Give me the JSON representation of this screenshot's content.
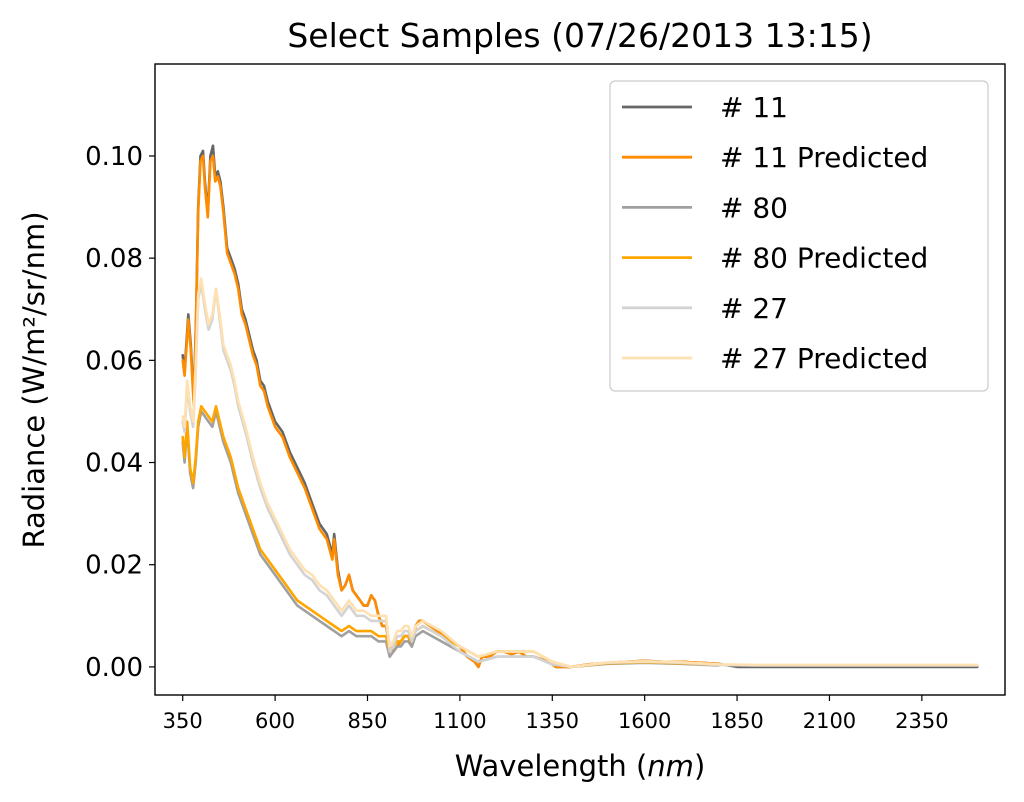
{
  "chart_data": {
    "type": "line",
    "title": "Select Samples (07/26/2013 13:15)",
    "xlabel_prefix": "Wavelength (",
    "xlabel_unit": "nm",
    "xlabel_suffix": ")",
    "ylabel": "Radiance (W/m²/sr/nm)",
    "xlim": [
      275,
      2575
    ],
    "ylim": [
      -0.0055,
      0.118
    ],
    "xticks": [
      350,
      600,
      850,
      1100,
      1350,
      1600,
      1850,
      2100,
      2350
    ],
    "yticks": [
      "0.00",
      "0.02",
      "0.04",
      "0.06",
      "0.08",
      "0.10"
    ],
    "ytick_values": [
      0.0,
      0.02,
      0.04,
      0.06,
      0.08,
      0.1
    ],
    "legend_position": "upper right",
    "series": [
      {
        "name": "# 11",
        "color": "#666666",
        "x": [
          350,
          355,
          365,
          372,
          380,
          386,
          392,
          398,
          405,
          410,
          418,
          425,
          432,
          438,
          445,
          452,
          460,
          470,
          480,
          490,
          500,
          510,
          520,
          530,
          540,
          550,
          560,
          570,
          580,
          590,
          600,
          620,
          640,
          660,
          680,
          700,
          720,
          740,
          755,
          760,
          770,
          780,
          790,
          800,
          810,
          820,
          830,
          840,
          850,
          860,
          870,
          880,
          890,
          900,
          910,
          920,
          930,
          940,
          950,
          960,
          970,
          980,
          990,
          1000,
          1020,
          1040,
          1060,
          1080,
          1100,
          1120,
          1140,
          1150,
          1160,
          1180,
          1200,
          1220,
          1240,
          1260,
          1280,
          1300,
          1320,
          1340,
          1360,
          1400,
          1450,
          1500,
          1550,
          1600,
          1650,
          1700,
          1750,
          1800,
          1850,
          1900,
          1950,
          2000,
          2050,
          2100,
          2150,
          2200,
          2250,
          2300,
          2350,
          2400,
          2450,
          2500
        ],
        "y": [
          0.061,
          0.058,
          0.069,
          0.063,
          0.052,
          0.068,
          0.09,
          0.1,
          0.101,
          0.095,
          0.089,
          0.1,
          0.102,
          0.096,
          0.097,
          0.095,
          0.09,
          0.082,
          0.08,
          0.078,
          0.075,
          0.07,
          0.068,
          0.065,
          0.062,
          0.06,
          0.056,
          0.055,
          0.052,
          0.05,
          0.048,
          0.046,
          0.042,
          0.039,
          0.036,
          0.032,
          0.028,
          0.026,
          0.022,
          0.026,
          0.019,
          0.015,
          0.016,
          0.018,
          0.015,
          0.014,
          0.013,
          0.012,
          0.012,
          0.014,
          0.013,
          0.01,
          0.008,
          0.008,
          0.004,
          0.003,
          0.004,
          0.005,
          0.006,
          0.006,
          0.004,
          0.008,
          0.009,
          0.009,
          0.008,
          0.007,
          0.006,
          0.005,
          0.004,
          0.002,
          0.001,
          0.0,
          0.002,
          0.002,
          0.003,
          0.003,
          0.0025,
          0.003,
          0.002,
          0.002,
          0.0015,
          0.001,
          0.0,
          0.0,
          0.0005,
          0.0008,
          0.001,
          0.0012,
          0.001,
          0.001,
          0.0008,
          0.0006,
          0.0,
          0.0,
          0.0,
          0.0,
          0.0,
          0.0,
          0.0,
          0.0,
          0.0,
          0.0,
          0.0,
          0.0,
          0.0,
          0.0
        ]
      },
      {
        "name": "# 11 Predicted",
        "color": "#ff8c00",
        "x": [
          350,
          355,
          365,
          372,
          380,
          386,
          392,
          398,
          405,
          410,
          418,
          425,
          432,
          438,
          445,
          452,
          460,
          470,
          480,
          490,
          500,
          510,
          520,
          530,
          540,
          550,
          560,
          570,
          580,
          590,
          600,
          620,
          640,
          660,
          680,
          700,
          720,
          740,
          755,
          760,
          770,
          780,
          790,
          800,
          810,
          820,
          830,
          840,
          850,
          860,
          870,
          880,
          890,
          900,
          910,
          920,
          930,
          940,
          950,
          960,
          970,
          980,
          990,
          1000,
          1020,
          1040,
          1060,
          1080,
          1100,
          1120,
          1140,
          1150,
          1160,
          1180,
          1200,
          1220,
          1240,
          1260,
          1280,
          1300,
          1320,
          1340,
          1360,
          1400,
          1450,
          1500,
          1550,
          1600,
          1650,
          1700,
          1750,
          1800
        ],
        "y": [
          0.06,
          0.057,
          0.068,
          0.062,
          0.051,
          0.067,
          0.089,
          0.099,
          0.1,
          0.094,
          0.088,
          0.099,
          0.1,
          0.095,
          0.096,
          0.094,
          0.089,
          0.081,
          0.079,
          0.077,
          0.074,
          0.069,
          0.067,
          0.064,
          0.061,
          0.059,
          0.055,
          0.054,
          0.051,
          0.049,
          0.047,
          0.045,
          0.041,
          0.038,
          0.035,
          0.031,
          0.027,
          0.025,
          0.021,
          0.025,
          0.018,
          0.015,
          0.016,
          0.018,
          0.015,
          0.014,
          0.013,
          0.012,
          0.012,
          0.014,
          0.013,
          0.01,
          0.008,
          0.008,
          0.004,
          0.003,
          0.004,
          0.005,
          0.006,
          0.006,
          0.004,
          0.008,
          0.009,
          0.009,
          0.008,
          0.007,
          0.006,
          0.005,
          0.004,
          0.002,
          0.001,
          0.0,
          0.002,
          0.002,
          0.003,
          0.003,
          0.0025,
          0.003,
          0.002,
          0.002,
          0.0015,
          0.001,
          0.0,
          0.0,
          0.0005,
          0.0008,
          0.001,
          0.0012,
          0.001,
          0.001,
          0.0008,
          0.0006
        ]
      },
      {
        "name": "# 80",
        "color": "#a0a0a0",
        "x": [
          350,
          355,
          362,
          370,
          378,
          385,
          392,
          400,
          410,
          420,
          430,
          440,
          450,
          460,
          470,
          480,
          490,
          500,
          520,
          540,
          560,
          580,
          600,
          620,
          640,
          660,
          680,
          700,
          720,
          740,
          760,
          780,
          800,
          820,
          840,
          860,
          880,
          900,
          910,
          920,
          930,
          940,
          950,
          960,
          970,
          980,
          1000,
          1050,
          1100,
          1150,
          1200,
          1250,
          1300,
          1350,
          1400,
          1500,
          1600,
          1700,
          1800
        ],
        "y": [
          0.044,
          0.04,
          0.047,
          0.038,
          0.035,
          0.04,
          0.047,
          0.05,
          0.049,
          0.048,
          0.047,
          0.05,
          0.047,
          0.044,
          0.042,
          0.04,
          0.037,
          0.034,
          0.03,
          0.026,
          0.022,
          0.02,
          0.018,
          0.016,
          0.014,
          0.012,
          0.011,
          0.01,
          0.009,
          0.008,
          0.007,
          0.006,
          0.007,
          0.006,
          0.006,
          0.006,
          0.005,
          0.005,
          0.002,
          0.003,
          0.004,
          0.004,
          0.005,
          0.005,
          0.004,
          0.006,
          0.007,
          0.005,
          0.003,
          0.001,
          0.002,
          0.002,
          0.002,
          0.0005,
          0.0,
          0.0006,
          0.0008,
          0.0006,
          0.0003
        ]
      },
      {
        "name": "# 80 Predicted",
        "color": "#ffa500",
        "x": [
          350,
          355,
          362,
          370,
          378,
          385,
          392,
          400,
          410,
          420,
          430,
          440,
          450,
          460,
          470,
          480,
          490,
          500,
          520,
          540,
          560,
          580,
          600,
          620,
          640,
          660,
          680,
          700,
          720,
          740,
          760,
          780,
          800,
          820,
          840,
          860,
          880,
          900,
          910,
          920,
          930,
          940,
          950,
          960,
          970,
          980,
          1000,
          1050,
          1100,
          1150,
          1200,
          1250,
          1300,
          1350,
          1400,
          1500,
          1600,
          1700,
          1800
        ],
        "y": [
          0.045,
          0.041,
          0.048,
          0.039,
          0.036,
          0.041,
          0.048,
          0.051,
          0.05,
          0.049,
          0.048,
          0.051,
          0.048,
          0.045,
          0.043,
          0.041,
          0.038,
          0.035,
          0.031,
          0.027,
          0.023,
          0.021,
          0.019,
          0.017,
          0.015,
          0.013,
          0.012,
          0.011,
          0.01,
          0.009,
          0.008,
          0.007,
          0.008,
          0.007,
          0.007,
          0.007,
          0.006,
          0.006,
          0.003,
          0.004,
          0.005,
          0.005,
          0.006,
          0.006,
          0.005,
          0.007,
          0.008,
          0.006,
          0.004,
          0.002,
          0.003,
          0.003,
          0.003,
          0.001,
          0.0,
          0.0007,
          0.0009,
          0.0007,
          0.0004
        ]
      },
      {
        "name": "# 27",
        "color": "#d3d3d3",
        "x": [
          350,
          355,
          362,
          370,
          378,
          385,
          392,
          400,
          410,
          420,
          430,
          440,
          450,
          460,
          470,
          480,
          490,
          500,
          520,
          540,
          560,
          580,
          600,
          620,
          640,
          660,
          680,
          700,
          720,
          740,
          760,
          780,
          800,
          820,
          840,
          860,
          880,
          900,
          910,
          920,
          930,
          940,
          950,
          960,
          970,
          980,
          1000,
          1050,
          1100,
          1150,
          1200,
          1250,
          1300,
          1350,
          1400,
          1500,
          1600,
          1700,
          1800,
          1900,
          2000,
          2100,
          2200,
          2300,
          2400,
          2500
        ],
        "y": [
          0.048,
          0.046,
          0.055,
          0.05,
          0.047,
          0.058,
          0.072,
          0.075,
          0.07,
          0.066,
          0.068,
          0.074,
          0.068,
          0.062,
          0.06,
          0.058,
          0.055,
          0.051,
          0.046,
          0.04,
          0.035,
          0.031,
          0.028,
          0.025,
          0.022,
          0.02,
          0.018,
          0.017,
          0.015,
          0.014,
          0.012,
          0.01,
          0.012,
          0.01,
          0.01,
          0.009,
          0.009,
          0.009,
          0.003,
          0.004,
          0.006,
          0.006,
          0.007,
          0.007,
          0.005,
          0.007,
          0.008,
          0.006,
          0.003,
          0.001,
          0.002,
          0.002,
          0.002,
          0.0005,
          0.0,
          0.0008,
          0.001,
          0.0008,
          0.0004,
          0.0003,
          0.0003,
          0.0003,
          0.0003,
          0.0003,
          0.0003,
          0.0003
        ]
      },
      {
        "name": "# 27 Predicted",
        "color": "#ffe0b0",
        "x": [
          350,
          355,
          362,
          370,
          378,
          385,
          392,
          400,
          410,
          420,
          430,
          440,
          450,
          460,
          470,
          480,
          490,
          500,
          520,
          540,
          560,
          580,
          600,
          620,
          640,
          660,
          680,
          700,
          720,
          740,
          760,
          780,
          800,
          820,
          840,
          860,
          880,
          900,
          910,
          920,
          930,
          940,
          950,
          960,
          970,
          980,
          1000,
          1050,
          1100,
          1150,
          1200,
          1250,
          1300,
          1350,
          1400,
          1500,
          1600,
          1700,
          1800,
          1900,
          2000,
          2100,
          2200,
          2300,
          2400,
          2500
        ],
        "y": [
          0.049,
          0.047,
          0.056,
          0.051,
          0.048,
          0.059,
          0.073,
          0.076,
          0.071,
          0.067,
          0.069,
          0.074,
          0.069,
          0.063,
          0.061,
          0.059,
          0.056,
          0.052,
          0.047,
          0.041,
          0.036,
          0.032,
          0.029,
          0.026,
          0.023,
          0.021,
          0.019,
          0.018,
          0.016,
          0.015,
          0.013,
          0.011,
          0.013,
          0.011,
          0.011,
          0.01,
          0.01,
          0.01,
          0.004,
          0.005,
          0.007,
          0.007,
          0.008,
          0.008,
          0.006,
          0.008,
          0.009,
          0.007,
          0.004,
          0.002,
          0.003,
          0.003,
          0.003,
          0.001,
          0.0,
          0.0009,
          0.0011,
          0.0009,
          0.0005,
          0.0004,
          0.0004,
          0.0004,
          0.0004,
          0.0004,
          0.0004,
          0.0004
        ]
      }
    ]
  }
}
